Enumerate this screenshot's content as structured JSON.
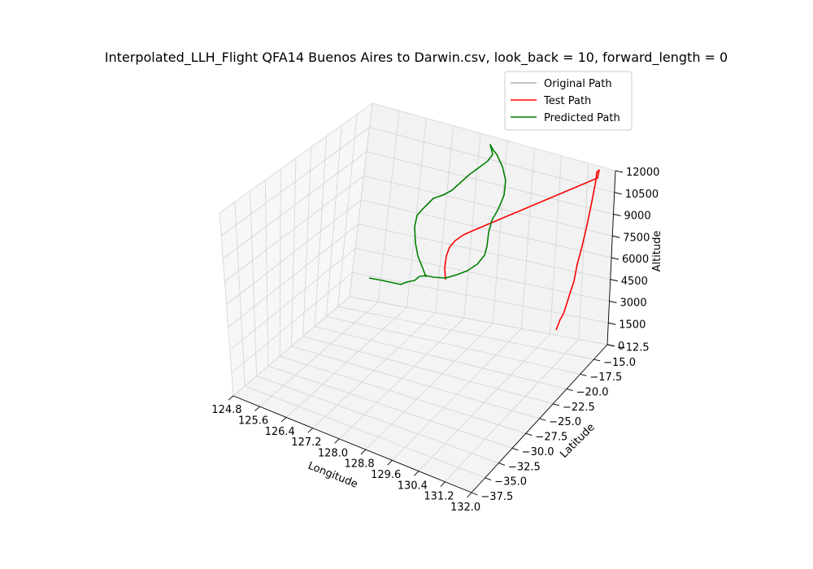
{
  "chart_data": {
    "type": "line3d",
    "title": "Interpolated_LLH_Flight QFA14 Buenos Aires to Darwin.csv, look_back = 10, forward_length = 0",
    "xlabel": "Longitude",
    "ylabel": "Latitude",
    "zlabel": "Altitude",
    "xlim": [
      124.8,
      132.0
    ],
    "ylim": [
      -37.5,
      -12.5
    ],
    "zlim": [
      0,
      12000
    ],
    "x_ticks": [
      "124.8",
      "125.6",
      "126.4",
      "127.2",
      "128.0",
      "128.8",
      "129.6",
      "130.4",
      "131.2",
      "132.0"
    ],
    "y_ticks": [
      "−37.5",
      "−35.0",
      "−32.5",
      "−30.0",
      "−27.5",
      "−25.0",
      "−22.5",
      "−20.0",
      "−17.5",
      "−15.0",
      "−12.5"
    ],
    "z_ticks": [
      "0",
      "1500",
      "3000",
      "4500",
      "6000",
      "7500",
      "9000",
      "10500",
      "12000"
    ],
    "grid": true,
    "legend_position": "upper-right",
    "series": [
      {
        "name": "Original Path",
        "color": "#b0b0b0"
      },
      {
        "name": "Test Path",
        "color": "#ff0000"
      },
      {
        "name": "Predicted Path",
        "color": "#008000"
      }
    ]
  }
}
